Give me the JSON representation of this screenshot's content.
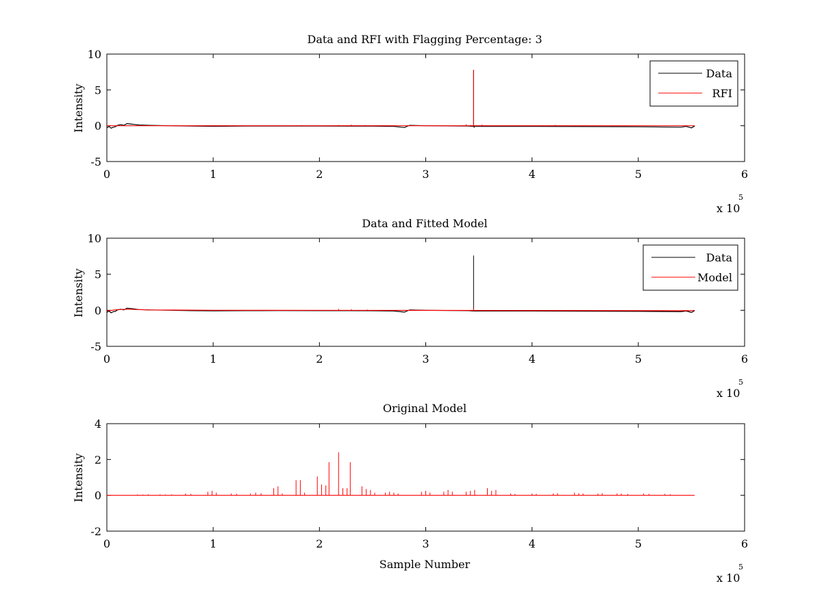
{
  "chart_data": [
    {
      "type": "line",
      "title": "Data and RFI with Flagging Percentage: 3",
      "xlabel": "",
      "ylabel": "Intensity",
      "xlim": [
        0,
        600000
      ],
      "ylim": [
        -5,
        10
      ],
      "xticks": [
        0,
        1,
        2,
        3,
        4,
        5,
        6
      ],
      "yticks": [
        -5,
        0,
        5,
        10
      ],
      "x_multiplier": "x 10",
      "x_exponent": "5",
      "legend_position": "top-right",
      "series": [
        {
          "name": "Data",
          "color": "#000000",
          "points": [
            [
              0,
              -0.3
            ],
            [
              2000,
              -0.1
            ],
            [
              4000,
              -0.35
            ],
            [
              6000,
              -0.2
            ],
            [
              8000,
              -0.15
            ],
            [
              10000,
              0.05
            ],
            [
              13000,
              0.15
            ],
            [
              16000,
              0.05
            ],
            [
              19000,
              0.3
            ],
            [
              22000,
              0.25
            ],
            [
              26000,
              0.18
            ],
            [
              30000,
              0.1
            ],
            [
              40000,
              0.05
            ],
            [
              60000,
              0.0
            ],
            [
              80000,
              -0.05
            ],
            [
              100000,
              -0.08
            ],
            [
              130000,
              -0.05
            ],
            [
              160000,
              -0.04
            ],
            [
              200000,
              -0.05
            ],
            [
              250000,
              -0.06
            ],
            [
              270000,
              -0.1
            ],
            [
              280000,
              -0.25
            ],
            [
              283000,
              -0.05
            ],
            [
              285000,
              0.05
            ],
            [
              300000,
              0.0
            ],
            [
              340000,
              -0.05
            ],
            [
              345000,
              -0.1
            ],
            [
              400000,
              -0.1
            ],
            [
              450000,
              -0.12
            ],
            [
              500000,
              -0.15
            ],
            [
              540000,
              -0.2
            ],
            [
              545000,
              -0.1
            ],
            [
              550000,
              -0.3
            ],
            [
              553000,
              -0.05
            ]
          ],
          "spikes": [
            [
              345000,
              7.8
            ],
            [
              345500,
              -0.3
            ]
          ]
        },
        {
          "name": "RFI",
          "color": "#ff0000",
          "points": [
            [
              0,
              0
            ],
            [
              553000,
              0
            ]
          ],
          "spikes": [
            [
              345000,
              7.8
            ],
            [
              338000,
              0.2
            ],
            [
              353000,
              0.15
            ],
            [
              422000,
              0.12
            ],
            [
              218000,
              0.1
            ],
            [
              230000,
              0.15
            ],
            [
              243000,
              0.1
            ],
            [
              183000,
              0.08
            ]
          ]
        }
      ]
    },
    {
      "type": "line",
      "title": "Data and Fitted Model",
      "xlabel": "",
      "ylabel": "Intensity",
      "xlim": [
        0,
        600000
      ],
      "ylim": [
        -5,
        10
      ],
      "xticks": [
        0,
        1,
        2,
        3,
        4,
        5,
        6
      ],
      "yticks": [
        -5,
        0,
        5,
        10
      ],
      "x_multiplier": "x 10",
      "x_exponent": "5",
      "legend_position": "top-right",
      "series": [
        {
          "name": "Data",
          "color": "#000000",
          "points": [
            [
              0,
              -0.3
            ],
            [
              2000,
              -0.1
            ],
            [
              4000,
              -0.35
            ],
            [
              6000,
              -0.2
            ],
            [
              8000,
              -0.15
            ],
            [
              10000,
              0.05
            ],
            [
              13000,
              0.15
            ],
            [
              16000,
              0.05
            ],
            [
              19000,
              0.3
            ],
            [
              22000,
              0.25
            ],
            [
              26000,
              0.18
            ],
            [
              30000,
              0.1
            ],
            [
              40000,
              0.05
            ],
            [
              60000,
              0.0
            ],
            [
              80000,
              -0.05
            ],
            [
              100000,
              -0.08
            ],
            [
              130000,
              -0.05
            ],
            [
              160000,
              -0.04
            ],
            [
              200000,
              -0.05
            ],
            [
              250000,
              -0.06
            ],
            [
              270000,
              -0.1
            ],
            [
              280000,
              -0.25
            ],
            [
              283000,
              -0.05
            ],
            [
              285000,
              0.05
            ],
            [
              300000,
              0.0
            ],
            [
              340000,
              -0.05
            ],
            [
              345000,
              -0.1
            ],
            [
              400000,
              -0.1
            ],
            [
              450000,
              -0.12
            ],
            [
              500000,
              -0.15
            ],
            [
              540000,
              -0.2
            ],
            [
              545000,
              -0.1
            ],
            [
              550000,
              -0.3
            ],
            [
              553000,
              -0.05
            ]
          ],
          "spikes": [
            [
              345000,
              7.6
            ]
          ]
        },
        {
          "name": "Model",
          "color": "#ff0000",
          "points": [
            [
              0,
              -0.1
            ],
            [
              10000,
              0.1
            ],
            [
              20000,
              0.15
            ],
            [
              40000,
              0.05
            ],
            [
              100000,
              0.0
            ],
            [
              300000,
              -0.02
            ],
            [
              550000,
              -0.05
            ],
            [
              553000,
              -0.02
            ]
          ],
          "spikes": [
            [
              345000,
              0.3
            ],
            [
              218000,
              0.2
            ],
            [
              230000,
              0.15
            ],
            [
              245000,
              0.1
            ]
          ]
        }
      ]
    },
    {
      "type": "line",
      "title": "Original Model",
      "xlabel": "Sample Number",
      "ylabel": "Intensity",
      "xlim": [
        0,
        600000
      ],
      "ylim": [
        -2,
        4
      ],
      "xticks": [
        0,
        1,
        2,
        3,
        4,
        5,
        6
      ],
      "yticks": [
        -2,
        0,
        2,
        4
      ],
      "x_multiplier": "x 10",
      "x_exponent": "5",
      "legend_position": "none",
      "series": [
        {
          "name": "",
          "color": "#ff0000",
          "points": [
            [
              0,
              0
            ],
            [
              553000,
              0
            ]
          ],
          "spikes": [
            [
              29000,
              0.05
            ],
            [
              34000,
              0.04
            ],
            [
              39000,
              0.05
            ],
            [
              50000,
              0.05
            ],
            [
              55000,
              0.04
            ],
            [
              61000,
              0.05
            ],
            [
              74000,
              0.1
            ],
            [
              79000,
              0.08
            ],
            [
              95000,
              0.2
            ],
            [
              99000,
              0.25
            ],
            [
              103000,
              0.15
            ],
            [
              117000,
              0.1
            ],
            [
              122000,
              0.08
            ],
            [
              135000,
              0.1
            ],
            [
              140000,
              0.15
            ],
            [
              145000,
              0.12
            ],
            [
              157000,
              0.4
            ],
            [
              161000,
              0.5
            ],
            [
              165000,
              0.1
            ],
            [
              178000,
              0.85
            ],
            [
              182000,
              0.85
            ],
            [
              186000,
              0.15
            ],
            [
              198000,
              1.05
            ],
            [
              202000,
              0.6
            ],
            [
              206000,
              0.55
            ],
            [
              209000,
              1.85
            ],
            [
              218000,
              2.4
            ],
            [
              222000,
              0.4
            ],
            [
              226000,
              0.4
            ],
            [
              229000,
              1.85
            ],
            [
              240000,
              0.5
            ],
            [
              244000,
              0.35
            ],
            [
              248000,
              0.3
            ],
            [
              252000,
              0.15
            ],
            [
              262000,
              0.15
            ],
            [
              266000,
              0.2
            ],
            [
              270000,
              0.15
            ],
            [
              274000,
              0.1
            ],
            [
              296000,
              0.2
            ],
            [
              300000,
              0.25
            ],
            [
              304000,
              0.15
            ],
            [
              317000,
              0.2
            ],
            [
              321000,
              0.3
            ],
            [
              325000,
              0.2
            ],
            [
              338000,
              0.2
            ],
            [
              342000,
              0.25
            ],
            [
              346000,
              0.3
            ],
            [
              358000,
              0.4
            ],
            [
              362000,
              0.25
            ],
            [
              366000,
              0.3
            ],
            [
              380000,
              0.1
            ],
            [
              384000,
              0.08
            ],
            [
              400000,
              0.1
            ],
            [
              404000,
              0.08
            ],
            [
              420000,
              0.1
            ],
            [
              424000,
              0.12
            ],
            [
              440000,
              0.15
            ],
            [
              444000,
              0.12
            ],
            [
              448000,
              0.1
            ],
            [
              462000,
              0.1
            ],
            [
              466000,
              0.12
            ],
            [
              480000,
              0.1
            ],
            [
              484000,
              0.1
            ],
            [
              490000,
              0.08
            ],
            [
              505000,
              0.1
            ],
            [
              510000,
              0.08
            ],
            [
              525000,
              0.08
            ],
            [
              530000,
              0.06
            ]
          ]
        }
      ]
    }
  ]
}
